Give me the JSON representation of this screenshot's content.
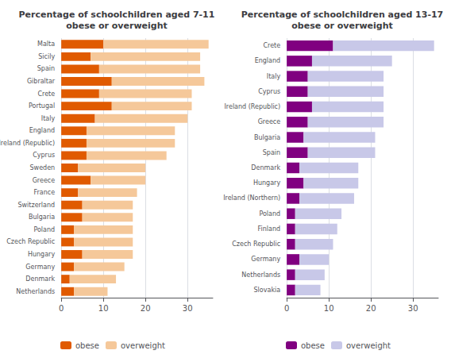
{
  "chart_data": [
    {
      "type": "bar",
      "title": "Percentage of schoolchildren aged 7-11\nobese or overweight",
      "categories": [
        "Malta",
        "Sicily",
        "Spain",
        "Gibraltar",
        "Crete",
        "Portugal",
        "Italy",
        "England",
        "Ireland (Republic)",
        "Cyprus",
        "Sweden",
        "Greece",
        "France",
        "Switzerland",
        "Bulgaria",
        "Poland",
        "Czech Republic",
        "Hungary",
        "Germany",
        "Denmark",
        "Netherlands"
      ],
      "series": [
        {
          "name": "obese",
          "color": "#e05a00",
          "values": [
            10,
            7,
            9,
            12,
            9,
            12,
            8,
            6,
            6,
            6,
            4,
            7,
            4,
            5,
            5,
            3,
            3,
            5,
            3,
            2,
            3
          ]
        },
        {
          "name": "overweight",
          "color": "#f5c89a",
          "values": [
            25,
            26,
            24,
            22,
            22,
            19,
            22,
            21,
            21,
            19,
            16,
            13,
            14,
            12,
            12,
            14,
            14,
            12,
            12,
            11,
            8
          ]
        }
      ],
      "xlim": [
        0,
        36
      ],
      "xticks": [
        0,
        10,
        20,
        30
      ],
      "orientation": "horizontal",
      "stacked": true,
      "grid": true,
      "legend": "bottom"
    },
    {
      "type": "bar",
      "title": "Percentage of schoolchildren aged 13-17\nobese or overweight",
      "categories": [
        "Crete",
        "England",
        "Italy",
        "Cyprus",
        "Ireland (Republic)",
        "Greece",
        "Bulgaria",
        "Spain",
        "Denmark",
        "Hungary",
        "Ireland (Northern)",
        "Poland",
        "Finland",
        "Czech Republic",
        "Germany",
        "Netherlands",
        "Slovakia"
      ],
      "series": [
        {
          "name": "obese",
          "color": "#800080",
          "values": [
            11,
            6,
            5,
            5,
            6,
            5,
            4,
            5,
            3,
            4,
            3,
            2,
            2,
            2,
            3,
            2,
            2
          ]
        },
        {
          "name": "overweight",
          "color": "#c8c8e8",
          "values": [
            24,
            19,
            18,
            18,
            17,
            18,
            17,
            16,
            14,
            13,
            13,
            11,
            10,
            9,
            7,
            7,
            6
          ]
        }
      ],
      "xlim": [
        0,
        36
      ],
      "xticks": [
        0,
        10,
        20,
        30
      ],
      "orientation": "horizontal",
      "stacked": true,
      "grid": true,
      "legend": "bottom"
    }
  ]
}
